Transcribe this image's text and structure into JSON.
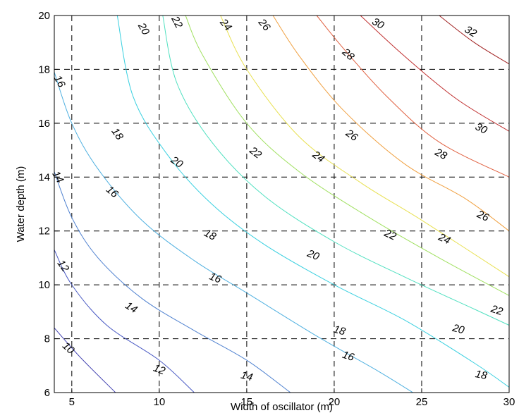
{
  "chart_data": {
    "type": "contour",
    "xlabel": "Width of oscillator (m)",
    "ylabel": "Water depth (m)",
    "xlim": [
      4,
      30
    ],
    "ylim": [
      6,
      20
    ],
    "xticks": [
      5,
      10,
      15,
      20,
      25,
      30
    ],
    "yticks": [
      6,
      8,
      10,
      12,
      14,
      16,
      18,
      20
    ],
    "grid": "dashed",
    "levels": [
      {
        "value": 10,
        "color": "#4040b0",
        "points": [
          [
            4,
            8.4
          ],
          [
            5.5,
            7.3
          ],
          [
            7.5,
            6.0
          ]
        ],
        "labels": [
          {
            "text": "10",
            "x": 4.8,
            "y": 7.65,
            "angle": 42
          }
        ]
      },
      {
        "value": 12,
        "color": "#4a5ac4",
        "points": [
          [
            4,
            11.3
          ],
          [
            5,
            10.0
          ],
          [
            7,
            8.5
          ],
          [
            10,
            7.2
          ],
          [
            12,
            6.0
          ]
        ],
        "labels": [
          {
            "text": "12",
            "x": 4.5,
            "y": 10.7,
            "angle": 55
          },
          {
            "text": "12",
            "x": 10.0,
            "y": 6.85,
            "angle": 20
          }
        ]
      },
      {
        "value": 14,
        "color": "#5082d0",
        "points": [
          [
            4,
            14.2
          ],
          [
            5,
            12.5
          ],
          [
            6.5,
            11.0
          ],
          [
            9,
            9.5
          ],
          [
            12,
            8.3
          ],
          [
            15,
            7.2
          ],
          [
            17.5,
            6.0
          ]
        ],
        "labels": [
          {
            "text": "14",
            "x": 4.2,
            "y": 14.0,
            "angle": 60
          },
          {
            "text": "14",
            "x": 8.4,
            "y": 9.15,
            "angle": 32
          },
          {
            "text": "14",
            "x": 15.0,
            "y": 6.6,
            "angle": 15
          }
        ]
      },
      {
        "value": 16,
        "color": "#4fb0e0",
        "points": [
          [
            4,
            17.9
          ],
          [
            5,
            16.0
          ],
          [
            6.5,
            14.3
          ],
          [
            9,
            12.4
          ],
          [
            12,
            10.9
          ],
          [
            15,
            9.7
          ],
          [
            19,
            8.1
          ],
          [
            22.5,
            6.8
          ],
          [
            24.5,
            6.0
          ]
        ],
        "labels": [
          {
            "text": "16",
            "x": 4.3,
            "y": 17.55,
            "angle": 62
          },
          {
            "text": "16",
            "x": 7.3,
            "y": 13.45,
            "angle": 40
          },
          {
            "text": "16",
            "x": 13.2,
            "y": 10.25,
            "angle": 22
          },
          {
            "text": "16",
            "x": 20.8,
            "y": 7.35,
            "angle": 18
          }
        ]
      },
      {
        "value": 18,
        "color": "#3ad0e0",
        "points": [
          [
            7.6,
            20.0
          ],
          [
            8.5,
            17.0
          ],
          [
            10.5,
            14.8
          ],
          [
            13,
            13.0
          ],
          [
            16,
            11.5
          ],
          [
            20,
            10.0
          ],
          [
            24,
            8.7
          ],
          [
            28,
            7.1
          ],
          [
            30,
            6.2
          ]
        ],
        "labels": [
          {
            "text": "18",
            "x": 7.6,
            "y": 15.6,
            "angle": 55
          },
          {
            "text": "18",
            "x": 12.9,
            "y": 11.85,
            "angle": 28
          },
          {
            "text": "18",
            "x": 20.3,
            "y": 8.3,
            "angle": 16
          },
          {
            "text": "18",
            "x": 28.4,
            "y": 6.65,
            "angle": 12
          }
        ]
      },
      {
        "value": 20,
        "color": "#50e0c0",
        "points": [
          [
            10.2,
            20.0
          ],
          [
            11,
            17.5
          ],
          [
            13,
            15.3
          ],
          [
            16,
            13.3
          ],
          [
            20,
            11.6
          ],
          [
            24,
            10.3
          ],
          [
            28,
            9.1
          ],
          [
            30,
            8.5
          ]
        ],
        "labels": [
          {
            "text": "20",
            "x": 9.1,
            "y": 19.5,
            "angle": 60
          },
          {
            "text": "20",
            "x": 11.0,
            "y": 14.55,
            "angle": 35
          },
          {
            "text": "20",
            "x": 18.8,
            "y": 11.1,
            "angle": 22
          },
          {
            "text": "20",
            "x": 27.1,
            "y": 8.35,
            "angle": 15
          }
        ]
      },
      {
        "value": 22,
        "color": "#a0e060",
        "points": [
          [
            11.5,
            20.0
          ],
          [
            12.5,
            18.5
          ],
          [
            15,
            16.0
          ],
          [
            18,
            14.2
          ],
          [
            22,
            12.5
          ],
          [
            26,
            11.0
          ],
          [
            30,
            9.6
          ]
        ],
        "labels": [
          {
            "text": "22",
            "x": 11.0,
            "y": 19.75,
            "angle": 62
          },
          {
            "text": "22",
            "x": 15.5,
            "y": 14.9,
            "angle": 38
          },
          {
            "text": "22",
            "x": 23.2,
            "y": 11.85,
            "angle": 25
          },
          {
            "text": "22",
            "x": 29.3,
            "y": 9.05,
            "angle": 18
          }
        ]
      },
      {
        "value": 24,
        "color": "#e8e050",
        "points": [
          [
            13.5,
            20.0
          ],
          [
            15,
            18.0
          ],
          [
            18,
            15.5
          ],
          [
            21.5,
            13.8
          ],
          [
            25,
            12.4
          ],
          [
            30,
            10.3
          ]
        ],
        "labels": [
          {
            "text": "24",
            "x": 13.8,
            "y": 19.65,
            "angle": 50
          },
          {
            "text": "24",
            "x": 19.1,
            "y": 14.75,
            "angle": 36
          },
          {
            "text": "24",
            "x": 26.3,
            "y": 11.7,
            "angle": 25
          }
        ]
      },
      {
        "value": 26,
        "color": "#f0a040",
        "points": [
          [
            16.5,
            20.0
          ],
          [
            18,
            18.5
          ],
          [
            20.5,
            16.5
          ],
          [
            24,
            14.5
          ],
          [
            27.5,
            13.2
          ],
          [
            30,
            12.0
          ]
        ],
        "labels": [
          {
            "text": "26",
            "x": 16.0,
            "y": 19.65,
            "angle": 50
          },
          {
            "text": "26",
            "x": 21.0,
            "y": 15.55,
            "angle": 35
          },
          {
            "text": "26",
            "x": 28.5,
            "y": 12.55,
            "angle": 25
          }
        ]
      },
      {
        "value": 28,
        "color": "#e06040",
        "points": [
          [
            19,
            20.0
          ],
          [
            20.5,
            18.8
          ],
          [
            23,
            17.0
          ],
          [
            26,
            15.3
          ],
          [
            30,
            14.0
          ]
        ],
        "labels": [
          {
            "text": "28",
            "x": 20.8,
            "y": 18.55,
            "angle": 42
          },
          {
            "text": "28",
            "x": 26.1,
            "y": 14.85,
            "angle": 28
          }
        ]
      },
      {
        "value": 30,
        "color": "#c03030",
        "points": [
          [
            21.5,
            20.0
          ],
          [
            24,
            18.5
          ],
          [
            27,
            16.9
          ],
          [
            30,
            15.7
          ]
        ],
        "labels": [
          {
            "text": "30",
            "x": 22.5,
            "y": 19.7,
            "angle": 30
          },
          {
            "text": "30",
            "x": 28.4,
            "y": 15.8,
            "angle": 25
          }
        ]
      },
      {
        "value": 32,
        "color": "#a02020",
        "points": [
          [
            26,
            20.0
          ],
          [
            28,
            19.0
          ],
          [
            30,
            18.2
          ]
        ],
        "labels": [
          {
            "text": "32",
            "x": 27.8,
            "y": 19.4,
            "angle": 30
          }
        ]
      }
    ]
  }
}
